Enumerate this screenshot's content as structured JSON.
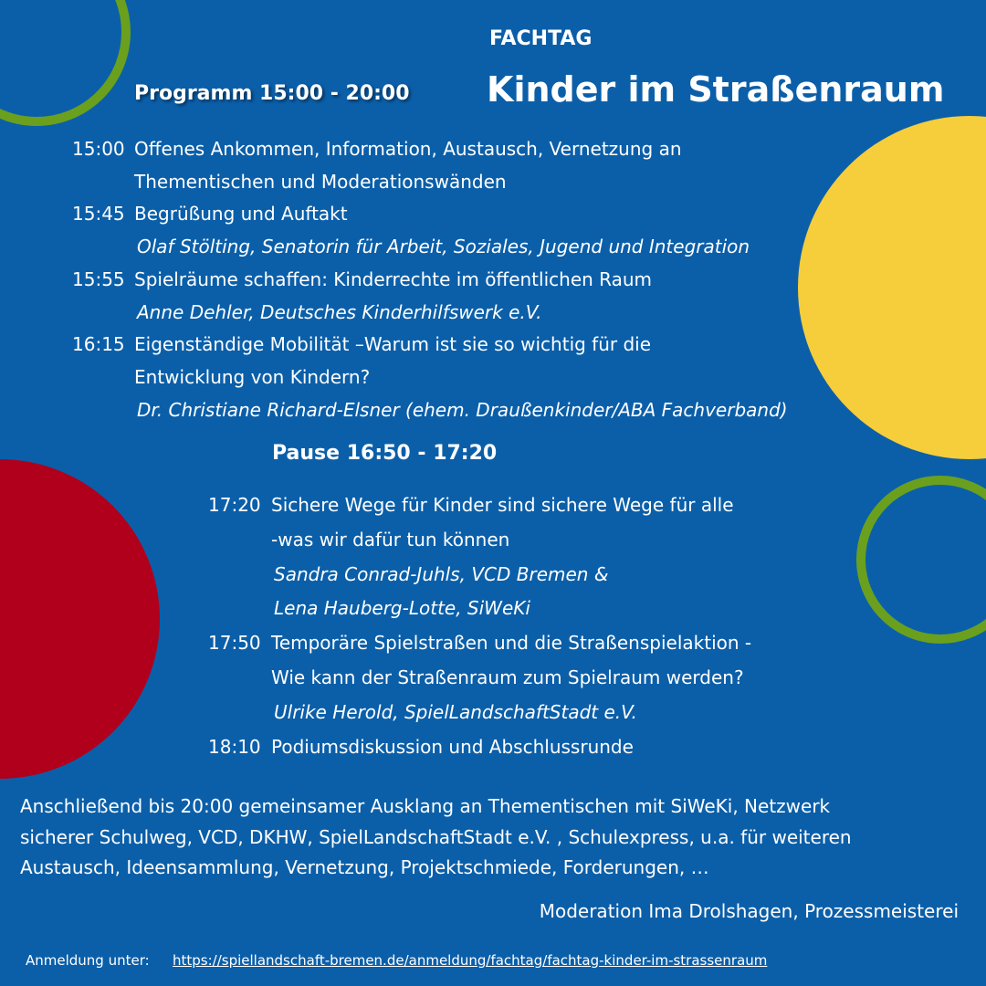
{
  "header": {
    "kicker": "FACHTAG",
    "title": "Kinder im Straßenraum",
    "program": "Programm 15:00 - 20:00"
  },
  "sessions": [
    {
      "time": "15:00",
      "lines": [
        "Offenes Ankommen, Information, Austausch, Vernetzung an",
        "Thementischen und Moderationswänden"
      ],
      "speakers": []
    },
    {
      "time": "15:45",
      "lines": [
        "Begrüßung und Auftakt"
      ],
      "speakers": [
        "Olaf Stölting, Senatorin für Arbeit, Soziales, Jugend und Integration"
      ]
    },
    {
      "time": "15:55",
      "lines": [
        "Spielräume schaffen: Kinderrechte im öffentlichen Raum"
      ],
      "speakers": [
        "Anne Dehler, Deutsches Kinderhilfswerk e.V."
      ]
    },
    {
      "time": "16:15",
      "lines": [
        "Eigenständige Mobilität –Warum ist sie so wichtig für die",
        "Entwicklung von Kindern?"
      ],
      "speakers": [
        "Dr. Christiane Richard-Elsner (ehem. Draußenkinder/ABA Fachverband)"
      ]
    }
  ],
  "pause": "Pause 16:50 - 17:20",
  "sessions_after": [
    {
      "time": "17:20",
      "lines": [
        "Sichere Wege für Kinder sind sichere Wege für alle",
        "-was wir dafür tun können"
      ],
      "speakers": [
        "Sandra Conrad-Juhls, VCD Bremen &",
        "Lena Hauberg-Lotte, SiWeKi"
      ]
    },
    {
      "time": "17:50",
      "lines": [
        "Temporäre Spielstraßen und die Straßenspielaktion -",
        "Wie kann der Straßenraum zum Spielraum werden?"
      ],
      "speakers": [
        "Ulrike Herold, SpielLandschaftStadt e.V."
      ]
    },
    {
      "time": "18:10",
      "lines": [
        "Podiumsdiskussion und Abschlussrunde"
      ],
      "speakers": []
    }
  ],
  "closing": [
    "Anschließend bis 20:00 gemeinsamer Ausklang an Thementischen mit SiWeKi, Netzwerk",
    "sicherer Schulweg, VCD, DKHW, SpielLandschaftStadt e.V. , Schulexpress, u.a. für weiteren",
    "Austausch, Ideensammlung, Vernetzung, Projektschmiede, Forderungen, …"
  ],
  "moderation": "Moderation Ima Drolshagen, Prozessmeisterei",
  "registration": {
    "label": "Anmeldung unter:",
    "url": "https://spiellandschaft-bremen.de/anmeldung/fachtag/fachtag-kinder-im-strassenraum"
  }
}
